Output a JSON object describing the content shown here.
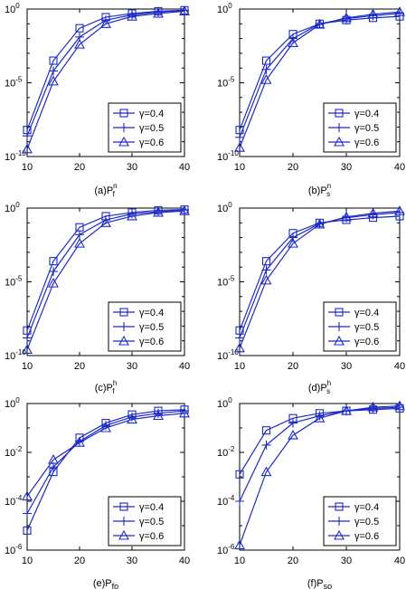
{
  "chart_data": [
    {
      "type": "line",
      "caption": "(a)P",
      "caption_sup": "n",
      "caption_sub": "f",
      "x": [
        10,
        15,
        20,
        25,
        30,
        35,
        40
      ],
      "xlim": [
        10,
        40
      ],
      "xticks": [
        "10",
        "20",
        "30",
        "40"
      ],
      "yscale": "log",
      "ylim_exp": [
        -10,
        0
      ],
      "yticks": [
        {
          "base": "10",
          "exp": "0"
        },
        {
          "base": "10",
          "exp": "-5"
        },
        {
          "base": "10",
          "exp": "-10"
        }
      ],
      "legend_position": "bottom-right",
      "series": [
        {
          "name": "γ=0.4",
          "marker": "square",
          "log10_values": [
            -8.2,
            -3.5,
            -1.3,
            -0.55,
            -0.3,
            -0.15,
            -0.08
          ]
        },
        {
          "name": "γ=0.5",
          "marker": "plus",
          "log10_values": [
            -8.6,
            -4.2,
            -1.9,
            -0.75,
            -0.4,
            -0.2,
            -0.1
          ]
        },
        {
          "name": "γ=0.6",
          "marker": "triangle",
          "log10_values": [
            -9.5,
            -4.9,
            -2.4,
            -1.0,
            -0.5,
            -0.3,
            -0.15
          ]
        }
      ]
    },
    {
      "type": "line",
      "caption": "(b)P",
      "caption_sup": "n",
      "caption_sub": "s",
      "x": [
        10,
        15,
        20,
        25,
        30,
        35,
        40
      ],
      "xlim": [
        10,
        40
      ],
      "xticks": [
        "10",
        "20",
        "30",
        "40"
      ],
      "yscale": "log",
      "ylim_exp": [
        -10,
        0
      ],
      "yticks": [
        {
          "base": "10",
          "exp": "0"
        },
        {
          "base": "10",
          "exp": "-5"
        },
        {
          "base": "10",
          "exp": "-10"
        }
      ],
      "legend_position": "bottom-right",
      "series": [
        {
          "name": "γ=0.4",
          "marker": "square",
          "log10_values": [
            -8.2,
            -3.5,
            -1.7,
            -1.0,
            -0.75,
            -0.6,
            -0.5
          ]
        },
        {
          "name": "γ=0.5",
          "marker": "plus",
          "log10_values": [
            -8.7,
            -4.1,
            -2.0,
            -1.0,
            -0.65,
            -0.45,
            -0.3
          ]
        },
        {
          "name": "γ=0.6",
          "marker": "triangle",
          "log10_values": [
            -9.4,
            -4.8,
            -2.3,
            -1.05,
            -0.6,
            -0.35,
            -0.2
          ]
        }
      ]
    },
    {
      "type": "line",
      "caption": "(c)P",
      "caption_sup": "h",
      "caption_sub": "f",
      "x": [
        10,
        15,
        20,
        25,
        30,
        35,
        40
      ],
      "xlim": [
        10,
        40
      ],
      "xticks": [
        "10",
        "20",
        "30",
        "40"
      ],
      "yscale": "log",
      "ylim_exp": [
        -10,
        0
      ],
      "yticks": [
        {
          "base": "10",
          "exp": "0"
        },
        {
          "base": "10",
          "exp": "-5"
        },
        {
          "base": "10",
          "exp": "-10"
        }
      ],
      "legend_position": "bottom-right",
      "series": [
        {
          "name": "γ=0.4",
          "marker": "square",
          "log10_values": [
            -8.3,
            -3.6,
            -1.3,
            -0.55,
            -0.3,
            -0.15,
            -0.1
          ]
        },
        {
          "name": "γ=0.5",
          "marker": "plus",
          "log10_values": [
            -8.8,
            -4.3,
            -1.8,
            -0.8,
            -0.4,
            -0.25,
            -0.12
          ]
        },
        {
          "name": "γ=0.6",
          "marker": "triangle",
          "log10_values": [
            -9.6,
            -5.1,
            -2.4,
            -1.0,
            -0.55,
            -0.3,
            -0.2
          ]
        }
      ]
    },
    {
      "type": "line",
      "caption": "(d)P",
      "caption_sup": "h",
      "caption_sub": "s",
      "x": [
        10,
        15,
        20,
        25,
        30,
        35,
        40
      ],
      "xlim": [
        10,
        40
      ],
      "xticks": [
        "10",
        "20",
        "30",
        "40"
      ],
      "yscale": "log",
      "ylim_exp": [
        -10,
        0
      ],
      "yticks": [
        {
          "base": "10",
          "exp": "0"
        },
        {
          "base": "10",
          "exp": "-5"
        },
        {
          "base": "10",
          "exp": "-10"
        }
      ],
      "legend_position": "bottom-right",
      "series": [
        {
          "name": "γ=0.4",
          "marker": "square",
          "log10_values": [
            -8.3,
            -3.6,
            -1.7,
            -1.0,
            -0.8,
            -0.65,
            -0.55
          ]
        },
        {
          "name": "γ=0.5",
          "marker": "plus",
          "log10_values": [
            -8.8,
            -4.2,
            -2.0,
            -1.05,
            -0.65,
            -0.45,
            -0.3
          ]
        },
        {
          "name": "γ=0.6",
          "marker": "triangle",
          "log10_values": [
            -9.5,
            -4.9,
            -2.4,
            -1.1,
            -0.6,
            -0.35,
            -0.2
          ]
        }
      ]
    },
    {
      "type": "line",
      "caption": "(e)P",
      "caption_sup": "",
      "caption_sub": "fo",
      "x": [
        10,
        15,
        20,
        25,
        30,
        35,
        40
      ],
      "xlim": [
        10,
        40
      ],
      "xticks": [
        "10",
        "20",
        "30",
        "40"
      ],
      "yscale": "log",
      "ylim_exp": [
        -6,
        0
      ],
      "yticks": [
        {
          "base": "10",
          "exp": "0"
        },
        {
          "base": "10",
          "exp": "-2"
        },
        {
          "base": "10",
          "exp": "-4"
        },
        {
          "base": "10",
          "exp": "-6"
        }
      ],
      "legend_position": "bottom-right",
      "series": [
        {
          "name": "γ=0.4",
          "marker": "square",
          "log10_values": [
            -5.2,
            -2.8,
            -1.4,
            -0.8,
            -0.45,
            -0.3,
            -0.25
          ]
        },
        {
          "name": "γ=0.5",
          "marker": "plus",
          "log10_values": [
            -4.5,
            -2.6,
            -1.55,
            -0.9,
            -0.55,
            -0.4,
            -0.3
          ]
        },
        {
          "name": "γ=0.6",
          "marker": "triangle",
          "log10_values": [
            -3.8,
            -2.3,
            -1.6,
            -1.0,
            -0.65,
            -0.5,
            -0.4
          ]
        }
      ]
    },
    {
      "type": "line",
      "caption": "(f)P",
      "caption_sup": "",
      "caption_sub": "so",
      "x": [
        10,
        15,
        20,
        25,
        30,
        35,
        40
      ],
      "xlim": [
        10,
        40
      ],
      "xticks": [
        "10",
        "20",
        "30",
        "40"
      ],
      "yscale": "log",
      "ylim_exp": [
        -6,
        0
      ],
      "yticks": [
        {
          "base": "10",
          "exp": "0"
        },
        {
          "base": "10",
          "exp": "-2"
        },
        {
          "base": "10",
          "exp": "-4"
        },
        {
          "base": "10",
          "exp": "-6"
        }
      ],
      "legend_position": "bottom-right",
      "series": [
        {
          "name": "γ=0.4",
          "marker": "square",
          "log10_values": [
            -2.9,
            -1.1,
            -0.6,
            -0.4,
            -0.3,
            -0.25,
            -0.2
          ]
        },
        {
          "name": "γ=0.5",
          "marker": "plus",
          "log10_values": [
            -4.0,
            -1.7,
            -0.8,
            -0.5,
            -0.3,
            -0.2,
            -0.15
          ]
        },
        {
          "name": "γ=0.6",
          "marker": "triangle",
          "log10_values": [
            -5.8,
            -2.8,
            -1.3,
            -0.6,
            -0.3,
            -0.15,
            -0.1
          ]
        }
      ]
    }
  ],
  "colors": {
    "line": "#1c2bc4",
    "axis": "#000000",
    "legend_bg": "#ffffff"
  }
}
